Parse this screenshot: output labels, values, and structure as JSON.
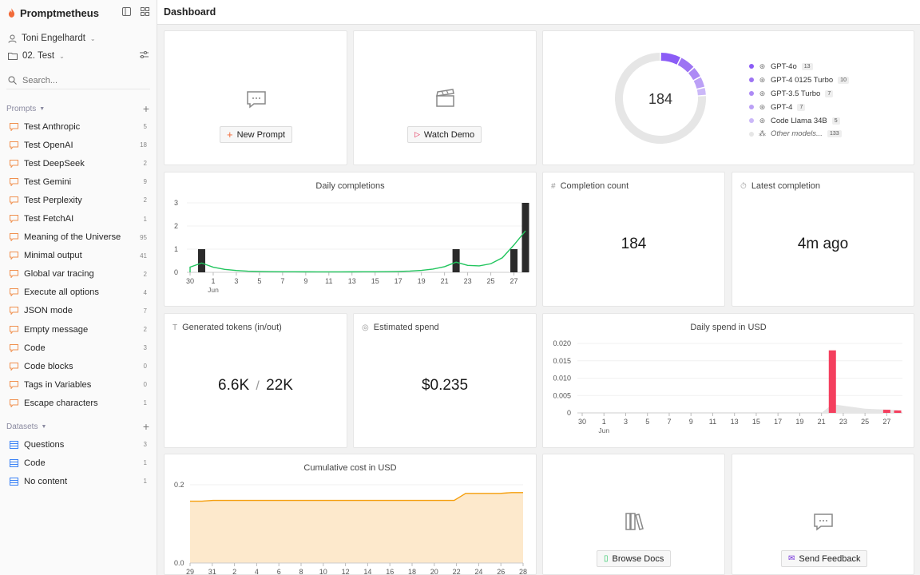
{
  "app": {
    "name": "Promptmetheus",
    "page_title": "Dashboard"
  },
  "sidebar": {
    "user": "Toni Engelhardt",
    "project": "02. Test",
    "search_placeholder": "Search...",
    "prompts_header": "Prompts",
    "datasets_header": "Datasets",
    "prompts": [
      {
        "label": "Test Anthropic",
        "count": "5"
      },
      {
        "label": "Test OpenAI",
        "count": "18"
      },
      {
        "label": "Test DeepSeek",
        "count": "2"
      },
      {
        "label": "Test Gemini",
        "count": "9"
      },
      {
        "label": "Test Perplexity",
        "count": "2"
      },
      {
        "label": "Test FetchAI",
        "count": "1"
      },
      {
        "label": "Meaning of the Universe",
        "count": "95"
      },
      {
        "label": "Minimal output",
        "count": "41"
      },
      {
        "label": "Global var tracing",
        "count": "2"
      },
      {
        "label": "Execute all options",
        "count": "4"
      },
      {
        "label": "JSON mode",
        "count": "7"
      },
      {
        "label": "Empty message",
        "count": "2"
      },
      {
        "label": "Code",
        "count": "3"
      },
      {
        "label": "Code blocks",
        "count": "0"
      },
      {
        "label": "Tags in Variables",
        "count": "0"
      },
      {
        "label": "Escape characters",
        "count": "1"
      }
    ],
    "datasets": [
      {
        "label": "Questions",
        "count": "3"
      },
      {
        "label": "Code",
        "count": "1"
      },
      {
        "label": "No content",
        "count": "1"
      }
    ]
  },
  "actions": {
    "new_prompt": "New Prompt",
    "watch_demo": "Watch Demo",
    "browse_docs": "Browse Docs",
    "send_feedback": "Send Feedback"
  },
  "models_card": {
    "total": "184",
    "models": [
      {
        "name": "GPT-4o",
        "count": "13",
        "color": "#8b5cf6"
      },
      {
        "name": "GPT-4 0125 Turbo",
        "count": "10",
        "color": "#9d74f3"
      },
      {
        "name": "GPT-3.5 Turbo",
        "count": "7",
        "color": "#ad8af5"
      },
      {
        "name": "GPT-4",
        "count": "7",
        "color": "#bba0f6"
      },
      {
        "name": "Code Llama 34B",
        "count": "5",
        "color": "#cbb8f8"
      },
      {
        "name": "Other models...",
        "count": "133",
        "color": "#e6e6e6"
      }
    ]
  },
  "stats": {
    "completion_count_title": "Completion count",
    "completion_count": "184",
    "latest_completion_title": "Latest completion",
    "latest_completion": "4m ago",
    "tokens_title": "Generated tokens (in/out)",
    "tokens_in": "6.6K",
    "tokens_sep": "/",
    "tokens_out": "22K",
    "spend_title": "Estimated spend",
    "spend": "$0.235"
  },
  "chart_data": [
    {
      "type": "bar",
      "title": "Daily completions",
      "x_tick_labels": [
        "30",
        "1",
        "3",
        "5",
        "7",
        "9",
        "11",
        "13",
        "15",
        "17",
        "19",
        "21",
        "23",
        "25",
        "27"
      ],
      "x_sub_label": "Jun",
      "y_ticks": [
        "0",
        "1",
        "2",
        "3"
      ],
      "ylim": [
        0,
        3
      ],
      "bars": [
        {
          "day": "31",
          "value": 1
        },
        {
          "day": "22",
          "value": 1
        },
        {
          "day": "27",
          "value": 1
        },
        {
          "day": "28",
          "value": 3
        }
      ],
      "trend_color": "#22c55e",
      "bar_color": "#2b2b2b"
    },
    {
      "type": "bar",
      "title": "Daily spend in USD",
      "x_tick_labels": [
        "30",
        "1",
        "3",
        "5",
        "7",
        "9",
        "11",
        "13",
        "15",
        "17",
        "19",
        "21",
        "23",
        "25",
        "27"
      ],
      "x_sub_label": "Jun",
      "y_ticks": [
        "0",
        "0.005",
        "0.010",
        "0.015",
        "0.020"
      ],
      "ylim": [
        0,
        0.02
      ],
      "bars": [
        {
          "day": "22",
          "value": 0.018
        },
        {
          "day": "27",
          "value": 0.0009
        },
        {
          "day": "28",
          "value": 0.0007
        }
      ],
      "bar_color": "#f43f5e"
    },
    {
      "type": "area",
      "title": "Cumulative cost in USD",
      "x_tick_labels": [
        "29",
        "31",
        "2",
        "4",
        "6",
        "8",
        "10",
        "12",
        "14",
        "16",
        "18",
        "20",
        "22",
        "24",
        "26",
        "28"
      ],
      "y_ticks": [
        "0.0",
        "0.2"
      ],
      "ylim": [
        0,
        0.2
      ],
      "values": [
        0.158,
        0.158,
        0.16,
        0.16,
        0.16,
        0.16,
        0.16,
        0.16,
        0.16,
        0.16,
        0.16,
        0.16,
        0.16,
        0.16,
        0.16,
        0.16,
        0.16,
        0.16,
        0.16,
        0.16,
        0.16,
        0.16,
        0.16,
        0.16,
        0.178,
        0.178,
        0.178,
        0.178,
        0.18,
        0.18
      ],
      "line_color": "#f59e0b",
      "fill_color": "#fde9cc"
    }
  ]
}
